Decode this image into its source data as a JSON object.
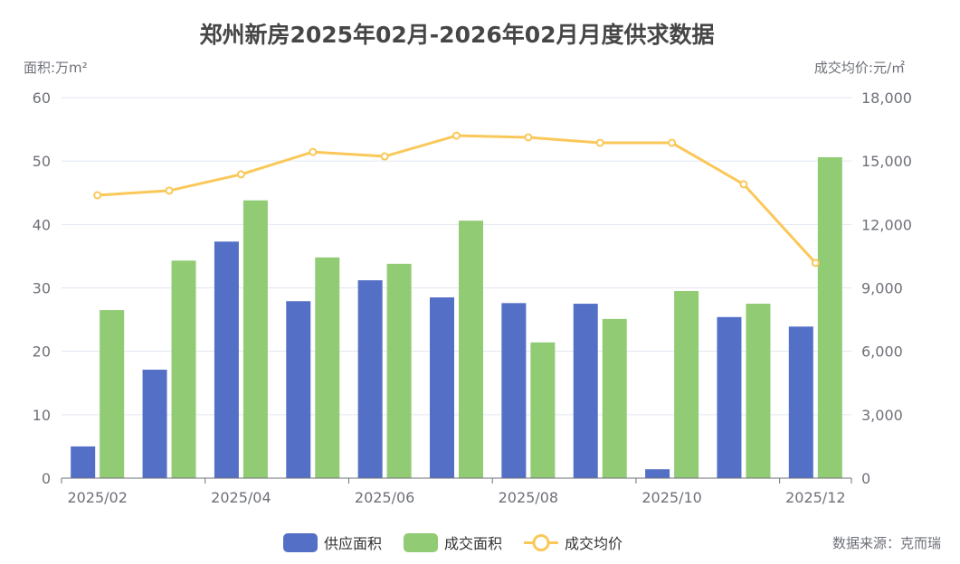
{
  "chart_data": {
    "type": "bar",
    "title": "郑州新房2025年02月-2026年02月月度供求数据",
    "ylabel_left": "面积:万m²",
    "ylabel_right": "成交均价:元/㎡",
    "ylim_left": [
      0,
      60
    ],
    "ylim_right": [
      0,
      18000
    ],
    "yticks_left": [
      "0",
      "10",
      "20",
      "30",
      "40",
      "50",
      "60"
    ],
    "yticks_right": [
      "0",
      "3,000",
      "6,000",
      "9,000",
      "12,000",
      "15,000",
      "18,000"
    ],
    "categories": [
      "2025/02",
      "2025/03",
      "2025/04",
      "2025/05",
      "2025/06",
      "2025/07",
      "2025/08",
      "2025/09",
      "2025/10",
      "2025/11",
      "2025/12"
    ],
    "xtick_labels": [
      "2025/02",
      "2025/04",
      "2025/06",
      "2025/08",
      "2025/10",
      "2025/12"
    ],
    "series": [
      {
        "name": "供应面积",
        "type": "bar",
        "axis": "left",
        "color": "#5470c6",
        "values": [
          5.0,
          17.1,
          37.3,
          27.9,
          31.2,
          28.5,
          27.6,
          27.5,
          1.4,
          25.4,
          23.9
        ]
      },
      {
        "name": "成交面积",
        "type": "bar",
        "axis": "left",
        "color": "#91cc75",
        "values": [
          26.5,
          34.3,
          43.8,
          34.8,
          33.8,
          40.6,
          21.4,
          25.1,
          29.5,
          27.5,
          50.6
        ]
      },
      {
        "name": "成交均价",
        "type": "line",
        "axis": "right",
        "color": "#fac858",
        "values": [
          13380,
          13600,
          14370,
          15430,
          15220,
          16200,
          16120,
          15860,
          15860,
          13900,
          10180
        ]
      }
    ],
    "legend_position": "bottom-center",
    "grid": true,
    "source": "数据来源：克而瑞"
  }
}
